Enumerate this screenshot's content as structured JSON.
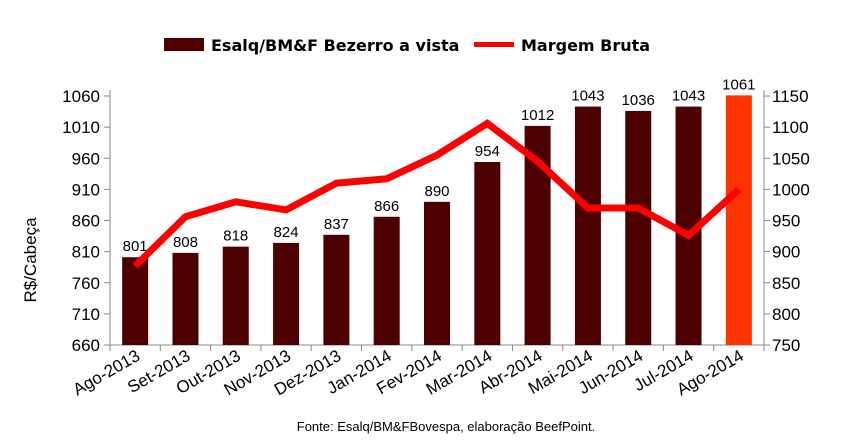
{
  "chart_data": {
    "type": "bar",
    "categories": [
      "Ago-2013",
      "Set-2013",
      "Out-2013",
      "Nov-2013",
      "Dez-2013",
      "Jan-2014",
      "Fev-2014",
      "Mar-2014",
      "Abr-2014",
      "Mai-2014",
      "Jun-2014",
      "Jul-2014",
      "Ago-2014"
    ],
    "series": [
      {
        "name": "Esalq/BM&F Bezerro a vista",
        "type": "bar",
        "axis": "left",
        "color": "#4d0000",
        "highlight_last_color": "#ff3300",
        "values": [
          801,
          808,
          818,
          824,
          837,
          866,
          890,
          954,
          1012,
          1043,
          1036,
          1043,
          1061
        ]
      },
      {
        "name": "Margem Bruta",
        "type": "line",
        "axis": "right",
        "color": "#ff0000",
        "values": [
          877,
          956,
          980,
          967,
          1010,
          1017,
          1055,
          1106,
          1045,
          970,
          970,
          926,
          1000
        ]
      }
    ],
    "ylabel": "R$/Cabeça",
    "ylim": [
      660,
      1060
    ],
    "yticks": [
      660,
      710,
      760,
      810,
      860,
      910,
      960,
      1010,
      1060
    ],
    "y2lim": [
      750,
      1150
    ],
    "y2ticks": [
      750,
      800,
      850,
      900,
      950,
      1000,
      1050,
      1100,
      1150
    ],
    "legend_position": "top",
    "grid": false,
    "source": "Fonte: Esalq/BM&FBovespa, elaboração BeefPoint."
  }
}
